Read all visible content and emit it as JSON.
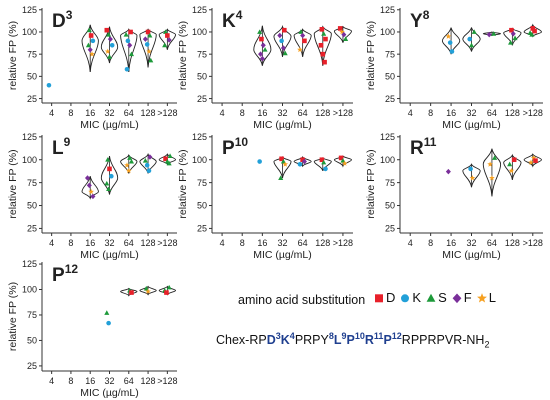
{
  "chart_data": {
    "type": "violin",
    "shared": {
      "xlabel": "MIC (µg/mL)",
      "ylabel": "relative FP (%)",
      "categories": [
        "4",
        "8",
        "16",
        "32",
        "64",
        "128",
        ">128"
      ],
      "yticks": [
        25,
        50,
        75,
        100,
        125
      ],
      "ylim": [
        20,
        127
      ]
    },
    "panels": [
      {
        "residue": "D",
        "position": "3",
        "violins": [
          {
            "cat": "16",
            "ymin": 55,
            "ymax": 108,
            "median": 90
          },
          {
            "cat": "32",
            "ymin": 65,
            "ymax": 106,
            "median": 83
          },
          {
            "cat": "64",
            "ymin": 55,
            "ymax": 103,
            "median": 96
          },
          {
            "cat": "128",
            "ymin": 60,
            "ymax": 103,
            "median": 97
          },
          {
            "cat": ">128",
            "ymin": 80,
            "ymax": 103,
            "median": 97
          }
        ],
        "points": [
          {
            "cat": "4",
            "y": 40,
            "aa": "K"
          },
          {
            "cat": "16",
            "y": 102,
            "aa": "S"
          },
          {
            "cat": "16",
            "y": 96,
            "aa": "D"
          },
          {
            "cat": "16",
            "y": 90,
            "aa": "K"
          },
          {
            "cat": "16",
            "y": 85,
            "aa": "S"
          },
          {
            "cat": "16",
            "y": 80,
            "aa": "F"
          },
          {
            "cat": "16",
            "y": 75,
            "aa": "L"
          },
          {
            "cat": "32",
            "y": 102,
            "aa": "D"
          },
          {
            "cat": "32",
            "y": 97,
            "aa": "S"
          },
          {
            "cat": "32",
            "y": 92,
            "aa": "F"
          },
          {
            "cat": "32",
            "y": 85,
            "aa": "K"
          },
          {
            "cat": "32",
            "y": 78,
            "aa": "L"
          },
          {
            "cat": "32",
            "y": 72,
            "aa": "S"
          },
          {
            "cat": "64",
            "y": 100,
            "aa": "D"
          },
          {
            "cat": "64",
            "y": 97,
            "aa": "S"
          },
          {
            "cat": "64",
            "y": 90,
            "aa": "K"
          },
          {
            "cat": "64",
            "y": 85,
            "aa": "F"
          },
          {
            "cat": "64",
            "y": 75,
            "aa": "S"
          },
          {
            "cat": "64",
            "y": 58,
            "aa": "K"
          },
          {
            "cat": "128",
            "y": 100,
            "aa": "D"
          },
          {
            "cat": "128",
            "y": 96,
            "aa": "S"
          },
          {
            "cat": "128",
            "y": 92,
            "aa": "F"
          },
          {
            "cat": "128",
            "y": 86,
            "aa": "K"
          },
          {
            "cat": "128",
            "y": 78,
            "aa": "L"
          },
          {
            "cat": "128",
            "y": 68,
            "aa": "S"
          },
          {
            "cat": ">128",
            "y": 100,
            "aa": "S"
          },
          {
            "cat": ">128",
            "y": 96,
            "aa": "D"
          },
          {
            "cat": ">128",
            "y": 91,
            "aa": "F"
          },
          {
            "cat": ">128",
            "y": 85,
            "aa": "S"
          }
        ]
      },
      {
        "residue": "K",
        "position": "4",
        "violins": [
          {
            "cat": "16",
            "ymin": 62,
            "ymax": 107,
            "median": 80
          },
          {
            "cat": "32",
            "ymin": 72,
            "ymax": 106,
            "median": 95
          },
          {
            "cat": "64",
            "ymin": 72,
            "ymax": 103,
            "median": 96
          },
          {
            "cat": "128",
            "ymin": 62,
            "ymax": 106,
            "median": 98
          },
          {
            "cat": ">128",
            "ymin": 88,
            "ymax": 106,
            "median": 101
          }
        ],
        "points": [
          {
            "cat": "16",
            "y": 100,
            "aa": "S"
          },
          {
            "cat": "16",
            "y": 92,
            "aa": "D"
          },
          {
            "cat": "16",
            "y": 85,
            "aa": "F"
          },
          {
            "cat": "16",
            "y": 80,
            "aa": "S"
          },
          {
            "cat": "16",
            "y": 75,
            "aa": "F"
          },
          {
            "cat": "16",
            "y": 70,
            "aa": "F"
          },
          {
            "cat": "32",
            "y": 102,
            "aa": "D"
          },
          {
            "cat": "32",
            "y": 96,
            "aa": "F"
          },
          {
            "cat": "32",
            "y": 90,
            "aa": "K"
          },
          {
            "cat": "32",
            "y": 82,
            "aa": "F"
          },
          {
            "cat": "32",
            "y": 76,
            "aa": "S"
          },
          {
            "cat": "64",
            "y": 100,
            "aa": "S"
          },
          {
            "cat": "64",
            "y": 96,
            "aa": "F"
          },
          {
            "cat": "64",
            "y": 90,
            "aa": "D"
          },
          {
            "cat": "64",
            "y": 80,
            "aa": "L"
          },
          {
            "cat": "128",
            "y": 103,
            "aa": "D"
          },
          {
            "cat": "128",
            "y": 98,
            "aa": "S"
          },
          {
            "cat": "128",
            "y": 92,
            "aa": "D"
          },
          {
            "cat": "128",
            "y": 85,
            "aa": "D"
          },
          {
            "cat": "128",
            "y": 75,
            "aa": "D"
          },
          {
            "cat": "128",
            "y": 66,
            "aa": "D"
          },
          {
            "cat": ">128",
            "y": 104,
            "aa": "D"
          },
          {
            "cat": ">128",
            "y": 100,
            "aa": "L"
          },
          {
            "cat": ">128",
            "y": 97,
            "aa": "F"
          },
          {
            "cat": ">128",
            "y": 92,
            "aa": "S"
          }
        ]
      },
      {
        "residue": "Y",
        "position": "8",
        "violins": [
          {
            "cat": "16",
            "ymin": 75,
            "ymax": 105,
            "median": 90
          },
          {
            "cat": "32",
            "ymin": 78,
            "ymax": 105,
            "median": 92
          },
          {
            "cat": "64",
            "ymin": 96,
            "ymax": 100,
            "median": 98
          },
          {
            "cat": "128",
            "ymin": 85,
            "ymax": 104,
            "median": 99
          },
          {
            "cat": ">128",
            "ymin": 95,
            "ymax": 108,
            "median": 100
          }
        ],
        "points": [
          {
            "cat": "16",
            "y": 95,
            "aa": "L"
          },
          {
            "cat": "16",
            "y": 88,
            "aa": "K"
          },
          {
            "cat": "16",
            "y": 78,
            "aa": "K"
          },
          {
            "cat": "32",
            "y": 100,
            "aa": "S"
          },
          {
            "cat": "32",
            "y": 92,
            "aa": "K"
          },
          {
            "cat": "32",
            "y": 85,
            "aa": "S"
          },
          {
            "cat": "64",
            "y": 98,
            "aa": "S"
          },
          {
            "cat": "64",
            "y": 97,
            "aa": "F"
          },
          {
            "cat": "128",
            "y": 102,
            "aa": "D"
          },
          {
            "cat": "128",
            "y": 98,
            "aa": "F"
          },
          {
            "cat": "128",
            "y": 93,
            "aa": "S"
          },
          {
            "cat": "128",
            "y": 88,
            "aa": "S"
          },
          {
            "cat": ">128",
            "y": 104,
            "aa": "D"
          },
          {
            "cat": ">128",
            "y": 101,
            "aa": "D"
          },
          {
            "cat": ">128",
            "y": 99,
            "aa": "S"
          },
          {
            "cat": ">128",
            "y": 97,
            "aa": "S"
          }
        ]
      },
      {
        "residue": "L",
        "position": "9",
        "violins": [
          {
            "cat": "16",
            "ymin": 58,
            "ymax": 82,
            "median": 65
          },
          {
            "cat": "32",
            "ymin": 62,
            "ymax": 104,
            "median": 80
          },
          {
            "cat": "64",
            "ymin": 85,
            "ymax": 105,
            "median": 98
          },
          {
            "cat": "128",
            "ymin": 85,
            "ymax": 106,
            "median": 98
          },
          {
            "cat": ">128",
            "ymin": 95,
            "ymax": 106,
            "median": 100
          }
        ],
        "points": [
          {
            "cat": "16",
            "y": 80,
            "aa": "F"
          },
          {
            "cat": "16",
            "y": 72,
            "aa": "F"
          },
          {
            "cat": "16",
            "y": 65,
            "aa": "L"
          },
          {
            "cat": "16",
            "y": 60,
            "aa": "F"
          },
          {
            "cat": "32",
            "y": 100,
            "aa": "S"
          },
          {
            "cat": "32",
            "y": 90,
            "aa": "D"
          },
          {
            "cat": "32",
            "y": 82,
            "aa": "K"
          },
          {
            "cat": "32",
            "y": 74,
            "aa": "S"
          },
          {
            "cat": "32",
            "y": 68,
            "aa": "S"
          },
          {
            "cat": "64",
            "y": 102,
            "aa": "S"
          },
          {
            "cat": "64",
            "y": 98,
            "aa": "S"
          },
          {
            "cat": "64",
            "y": 94,
            "aa": "L"
          },
          {
            "cat": "64",
            "y": 88,
            "aa": "L"
          },
          {
            "cat": "128",
            "y": 103,
            "aa": "F"
          },
          {
            "cat": "128",
            "y": 99,
            "aa": "S"
          },
          {
            "cat": "128",
            "y": 94,
            "aa": "K"
          },
          {
            "cat": "128",
            "y": 88,
            "aa": "K"
          },
          {
            "cat": ">128",
            "y": 104,
            "aa": "S"
          },
          {
            "cat": ">128",
            "y": 101,
            "aa": "D"
          },
          {
            "cat": ">128",
            "y": 98,
            "aa": "S"
          },
          {
            "cat": ">128",
            "y": 96,
            "aa": "S"
          }
        ]
      },
      {
        "residue": "P",
        "position": "10",
        "violins": [
          {
            "cat": "32",
            "ymin": 80,
            "ymax": 103,
            "median": 98
          },
          {
            "cat": "64",
            "ymin": 93,
            "ymax": 103,
            "median": 98
          },
          {
            "cat": "128",
            "ymin": 88,
            "ymax": 102,
            "median": 98
          },
          {
            "cat": ">128",
            "ymin": 93,
            "ymax": 104,
            "median": 100
          }
        ],
        "points": [
          {
            "cat": "16",
            "y": 98,
            "aa": "K"
          },
          {
            "cat": "32",
            "y": 101,
            "aa": "D"
          },
          {
            "cat": "32",
            "y": 98,
            "aa": "S"
          },
          {
            "cat": "32",
            "y": 95,
            "aa": "L"
          },
          {
            "cat": "32",
            "y": 80,
            "aa": "S"
          },
          {
            "cat": "64",
            "y": 100,
            "aa": "D"
          },
          {
            "cat": "64",
            "y": 98,
            "aa": "F"
          },
          {
            "cat": "64",
            "y": 95,
            "aa": "K"
          },
          {
            "cat": "128",
            "y": 100,
            "aa": "D"
          },
          {
            "cat": "128",
            "y": 97,
            "aa": "S"
          },
          {
            "cat": "128",
            "y": 90,
            "aa": "K"
          },
          {
            "cat": ">128",
            "y": 102,
            "aa": "D"
          },
          {
            "cat": ">128",
            "y": 99,
            "aa": "S"
          },
          {
            "cat": ">128",
            "y": 96,
            "aa": "L"
          }
        ]
      },
      {
        "residue": "R",
        "position": "11",
        "violins": [
          {
            "cat": "32",
            "ymin": 70,
            "ymax": 95,
            "median": 88
          },
          {
            "cat": "64",
            "ymin": 60,
            "ymax": 112,
            "median": 95
          },
          {
            "cat": "128",
            "ymin": 78,
            "ymax": 105,
            "median": 97
          },
          {
            "cat": ">128",
            "ymin": 93,
            "ymax": 106,
            "median": 100
          }
        ],
        "points": [
          {
            "cat": "16",
            "y": 87,
            "aa": "F"
          },
          {
            "cat": "32",
            "y": 90,
            "aa": "K"
          },
          {
            "cat": "32",
            "y": 80,
            "aa": "L"
          },
          {
            "cat": "64",
            "y": 102,
            "aa": "S"
          },
          {
            "cat": "64",
            "y": 95,
            "aa": "L"
          },
          {
            "cat": "64",
            "y": 80,
            "aa": "L"
          },
          {
            "cat": "128",
            "y": 100,
            "aa": "D"
          },
          {
            "cat": "128",
            "y": 95,
            "aa": "S"
          },
          {
            "cat": "128",
            "y": 88,
            "aa": "L"
          },
          {
            "cat": ">128",
            "y": 102,
            "aa": "L"
          },
          {
            "cat": ">128",
            "y": 99,
            "aa": "D"
          },
          {
            "cat": ">128",
            "y": 97,
            "aa": "L"
          }
        ]
      },
      {
        "residue": "P",
        "position": "12",
        "violins": [
          {
            "cat": "64",
            "ymin": 94,
            "ymax": 101,
            "median": 98
          },
          {
            "cat": "128",
            "ymin": 95,
            "ymax": 103,
            "median": 99
          },
          {
            "cat": ">128",
            "ymin": 95,
            "ymax": 103,
            "median": 99
          }
        ],
        "points": [
          {
            "cat": "32",
            "y": 77,
            "aa": "S"
          },
          {
            "cat": "32",
            "y": 67,
            "aa": "K"
          },
          {
            "cat": "64",
            "y": 99,
            "aa": "S"
          },
          {
            "cat": "64",
            "y": 97,
            "aa": "D"
          },
          {
            "cat": "128",
            "y": 101,
            "aa": "S"
          },
          {
            "cat": "128",
            "y": 98,
            "aa": "L"
          },
          {
            "cat": ">128",
            "y": 102,
            "aa": "S"
          },
          {
            "cat": ">128",
            "y": 99,
            "aa": "S"
          },
          {
            "cat": ">128",
            "y": 97,
            "aa": "D"
          }
        ]
      }
    ]
  },
  "legend": {
    "label": "amino acid substitution",
    "items": [
      {
        "code": "D",
        "shape": "square",
        "color": "#e8202a"
      },
      {
        "code": "K",
        "shape": "circle",
        "color": "#22a0d8"
      },
      {
        "code": "S",
        "shape": "triangle",
        "color": "#1d9a3a"
      },
      {
        "code": "F",
        "shape": "diamond",
        "color": "#7a2f9a"
      },
      {
        "code": "L",
        "shape": "star",
        "color": "#f6a020"
      }
    ]
  },
  "sequence": {
    "prefix": "Chex-RP",
    "parts": [
      {
        "res": "D",
        "num": "3"
      },
      {
        "res": "K",
        "num": "4"
      }
    ],
    "middle1": "PRPY",
    "parts2": [
      {
        "res": "8",
        "num": ""
      }
    ],
    "text_a": "Chex-RP",
    "hl_a": [
      {
        "res": "D",
        "num": "3"
      },
      {
        "res": "K",
        "num": "4"
      }
    ],
    "text_b": "PRPY",
    "hl_b": [
      {
        "res": "",
        "num": "8"
      },
      {
        "res": "L",
        "num": "9"
      },
      {
        "res": "P",
        "num": "10"
      },
      {
        "res": "R",
        "num": "11"
      },
      {
        "res": "P",
        "num": "12"
      }
    ],
    "text_c": "RPPRPVR-NH",
    "sub": "2"
  }
}
